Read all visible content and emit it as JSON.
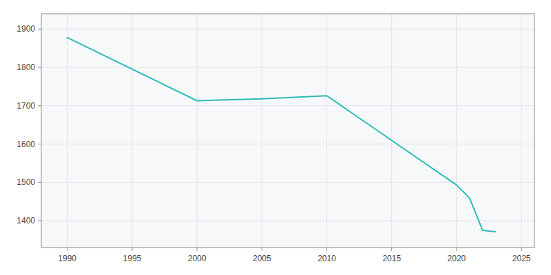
{
  "chart_data": {
    "type": "line",
    "x": [
      1990,
      2000,
      2005,
      2010,
      2020,
      2021,
      2022,
      2023
    ],
    "values": [
      1878,
      1713,
      1718,
      1726,
      1493,
      1459,
      1375,
      1371
    ],
    "color": "#2abcb4",
    "xlim": [
      1988,
      2026
    ],
    "ylim": [
      1330,
      1940
    ],
    "xticks": [
      1990,
      1995,
      2000,
      2005,
      2010,
      2015,
      2020,
      2025
    ],
    "yticks": [
      1400,
      1500,
      1600,
      1700,
      1800,
      1900
    ],
    "grid": true
  }
}
